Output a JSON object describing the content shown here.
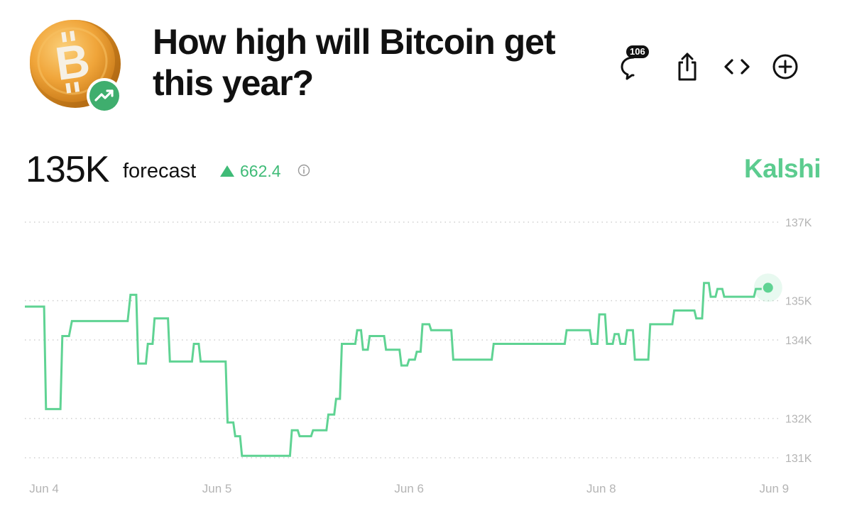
{
  "header": {
    "title": "How high will Bitcoin get this year?",
    "comment_count": "106",
    "coin_icon": "bitcoin-coin-icon",
    "trend_icon": "trending-up-icon"
  },
  "actions": [
    {
      "name": "comments-button",
      "icon": "comment-icon"
    },
    {
      "name": "share-button",
      "icon": "share-icon"
    },
    {
      "name": "embed-button",
      "icon": "code-icon"
    },
    {
      "name": "add-button",
      "icon": "plus-circle-icon"
    }
  ],
  "forecast": {
    "value": "135K",
    "label": "forecast",
    "change": "662.4",
    "change_color": "#3fbb77"
  },
  "brand": "Kalshi",
  "colors": {
    "line": "#5fd393",
    "brand": "#5ccc8f",
    "accent": "#3fbb77"
  },
  "chart_data": {
    "type": "line",
    "grid": "dotted horizontal",
    "ylim": [
      130900,
      137200
    ],
    "y_ticks": [
      {
        "value": 137000,
        "label": "137K"
      },
      {
        "value": 135000,
        "label": "135K"
      },
      {
        "value": 134000,
        "label": "134K"
      },
      {
        "value": 132000,
        "label": "132K"
      },
      {
        "value": 131000,
        "label": "131K"
      }
    ],
    "x_ticks": [
      {
        "t": 0.02,
        "label": "Jun 4"
      },
      {
        "t": 0.2,
        "label": "Jun 5"
      },
      {
        "t": 0.4,
        "label": "Jun 6"
      },
      {
        "t": 0.6,
        "label": "Jun 8"
      },
      {
        "t": 0.78,
        "label": "Jun 9"
      }
    ],
    "series": [
      {
        "step": true,
        "points": [
          [
            0.0,
            134850
          ],
          [
            0.02,
            134850
          ],
          [
            0.022,
            132240
          ],
          [
            0.037,
            132240
          ],
          [
            0.039,
            134100
          ],
          [
            0.046,
            134100
          ],
          [
            0.049,
            134480
          ],
          [
            0.107,
            134480
          ],
          [
            0.11,
            135150
          ],
          [
            0.116,
            135150
          ],
          [
            0.118,
            133400
          ],
          [
            0.126,
            133400
          ],
          [
            0.128,
            133900
          ],
          [
            0.133,
            133900
          ],
          [
            0.135,
            134550
          ],
          [
            0.149,
            134550
          ],
          [
            0.151,
            133450
          ],
          [
            0.174,
            133450
          ],
          [
            0.176,
            133900
          ],
          [
            0.181,
            133900
          ],
          [
            0.183,
            133450
          ],
          [
            0.209,
            133450
          ],
          [
            0.211,
            131900
          ],
          [
            0.217,
            131900
          ],
          [
            0.219,
            131550
          ],
          [
            0.224,
            131550
          ],
          [
            0.226,
            131050
          ],
          [
            0.276,
            131050
          ],
          [
            0.278,
            131700
          ],
          [
            0.284,
            131700
          ],
          [
            0.286,
            131550
          ],
          [
            0.298,
            131550
          ],
          [
            0.3,
            131700
          ],
          [
            0.314,
            131700
          ],
          [
            0.316,
            132100
          ],
          [
            0.322,
            132100
          ],
          [
            0.324,
            132500
          ],
          [
            0.328,
            132500
          ],
          [
            0.33,
            133900
          ],
          [
            0.344,
            133900
          ],
          [
            0.346,
            134250
          ],
          [
            0.35,
            134250
          ],
          [
            0.352,
            133750
          ],
          [
            0.357,
            133750
          ],
          [
            0.359,
            134100
          ],
          [
            0.374,
            134100
          ],
          [
            0.376,
            133750
          ],
          [
            0.39,
            133750
          ],
          [
            0.392,
            133350
          ],
          [
            0.398,
            133350
          ],
          [
            0.4,
            133500
          ],
          [
            0.406,
            133500
          ],
          [
            0.408,
            133700
          ],
          [
            0.412,
            133700
          ],
          [
            0.414,
            134400
          ],
          [
            0.421,
            134400
          ],
          [
            0.423,
            134250
          ],
          [
            0.444,
            134250
          ],
          [
            0.446,
            133500
          ],
          [
            0.486,
            133500
          ],
          [
            0.488,
            133900
          ],
          [
            0.562,
            133900
          ],
          [
            0.564,
            134250
          ],
          [
            0.588,
            134250
          ],
          [
            0.59,
            133900
          ],
          [
            0.596,
            133900
          ],
          [
            0.598,
            134650
          ],
          [
            0.604,
            134650
          ],
          [
            0.606,
            133900
          ],
          [
            0.612,
            133900
          ],
          [
            0.614,
            134150
          ],
          [
            0.618,
            134150
          ],
          [
            0.62,
            133900
          ],
          [
            0.625,
            133900
          ],
          [
            0.627,
            134250
          ],
          [
            0.633,
            134250
          ],
          [
            0.635,
            133500
          ],
          [
            0.649,
            133500
          ],
          [
            0.651,
            134400
          ],
          [
            0.674,
            134400
          ],
          [
            0.676,
            134750
          ],
          [
            0.697,
            134750
          ],
          [
            0.699,
            134550
          ],
          [
            0.705,
            134550
          ],
          [
            0.707,
            135450
          ],
          [
            0.712,
            135450
          ],
          [
            0.714,
            135100
          ],
          [
            0.719,
            135100
          ],
          [
            0.721,
            135300
          ],
          [
            0.726,
            135300
          ],
          [
            0.728,
            135100
          ],
          [
            0.759,
            135100
          ],
          [
            0.761,
            135300
          ],
          [
            0.767,
            135300
          ]
        ]
      }
    ],
    "last_value": 135330
  }
}
